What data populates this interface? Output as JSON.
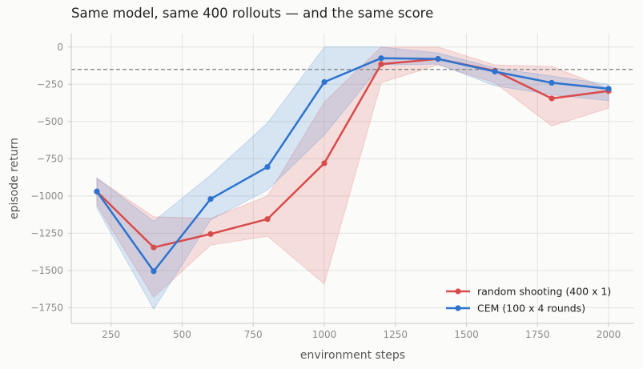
{
  "chart_data": {
    "type": "line",
    "title": "Same model, same 400 rollouts — and the same score",
    "xlabel": "environment steps",
    "ylabel": "episode return",
    "xlim": [
      110,
      2090
    ],
    "ylim": [
      -1855,
      90
    ],
    "xticks": [
      250,
      500,
      750,
      1000,
      1250,
      1500,
      1750,
      2000
    ],
    "xtick_labels": [
      "250",
      "500",
      "750",
      "1000",
      "1250",
      "1500",
      "1750",
      "2000"
    ],
    "yticks": [
      0,
      -250,
      -500,
      -750,
      -1000,
      -1250,
      -1500,
      -1750
    ],
    "ytick_labels": [
      "0",
      "−250",
      "−500",
      "−750",
      "−1000",
      "−1250",
      "−1500",
      "−1750"
    ],
    "grid": true,
    "legend_position": "lower-right",
    "reference_line": {
      "y": -150,
      "style": "dashed",
      "color": "#888888"
    },
    "x": [
      200,
      400,
      600,
      800,
      1000,
      1200,
      1400,
      1600,
      1800,
      2000
    ],
    "series": [
      {
        "name": "random shooting (400 x 1)",
        "color": "#d94b4b",
        "values": [
          -970,
          -1345,
          -1255,
          -1155,
          -780,
          -115,
          -80,
          -160,
          -345,
          -295
        ],
        "band_low": [
          -1060,
          -1680,
          -1330,
          -1270,
          -1590,
          -240,
          -120,
          -240,
          -530,
          -410
        ],
        "band_high": [
          -880,
          -1140,
          -1150,
          -1000,
          -370,
          0,
          0,
          -120,
          -130,
          -280
        ]
      },
      {
        "name": "CEM (100 x 4 rounds)",
        "color": "#2c74d0",
        "values": [
          -970,
          -1505,
          -1020,
          -805,
          -235,
          -75,
          -80,
          -165,
          -240,
          -280
        ],
        "band_low": [
          -1080,
          -1760,
          -1160,
          -960,
          -590,
          -120,
          -115,
          -260,
          -320,
          -360
        ],
        "band_high": [
          -880,
          -1170,
          -860,
          -510,
          0,
          0,
          -40,
          -140,
          -195,
          -250
        ]
      }
    ]
  }
}
